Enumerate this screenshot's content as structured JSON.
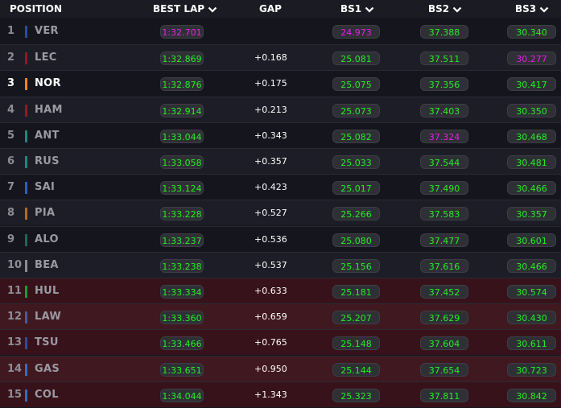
{
  "header": {
    "position": "POSITION",
    "best_lap": "BEST LAP",
    "gap": "GAP",
    "bs1": "BS1",
    "bs2": "BS2",
    "bs3": "BS3",
    "sort_icon": "chevron-down-icon"
  },
  "colors": {
    "personal_best": "#25ee25",
    "overall_best": "#e81ee8",
    "row_default": "#15151e",
    "row_alt": "#1d1d27",
    "row_eliminated": "#38121a",
    "row_eliminated_alt": "#401820"
  },
  "rows": [
    {
      "pos": "1",
      "code": "VER",
      "team_color": "#2b4c9c",
      "lap": "1:32.701",
      "lap_best": true,
      "gap": "",
      "bs1": "24.973",
      "bs1_best": true,
      "bs2": "37.388",
      "bs2_best": false,
      "bs3": "30.340",
      "bs3_best": false,
      "eliminated": false,
      "highlight": false
    },
    {
      "pos": "2",
      "code": "LEC",
      "team_color": "#8f1a22",
      "lap": "1:32.869",
      "lap_best": false,
      "gap": "+0.168",
      "bs1": "25.081",
      "bs1_best": false,
      "bs2": "37.511",
      "bs2_best": false,
      "bs3": "30.277",
      "bs3_best": true,
      "eliminated": false,
      "highlight": false
    },
    {
      "pos": "3",
      "code": "NOR",
      "team_color": "#f58020",
      "lap": "1:32.876",
      "lap_best": false,
      "gap": "+0.175",
      "bs1": "25.075",
      "bs1_best": false,
      "bs2": "37.356",
      "bs2_best": false,
      "bs3": "30.417",
      "bs3_best": false,
      "eliminated": false,
      "highlight": true
    },
    {
      "pos": "4",
      "code": "HAM",
      "team_color": "#8f1a22",
      "lap": "1:32.914",
      "lap_best": false,
      "gap": "+0.213",
      "bs1": "25.073",
      "bs1_best": false,
      "bs2": "37.403",
      "bs2_best": false,
      "bs3": "30.350",
      "bs3_best": false,
      "eliminated": false,
      "highlight": false
    },
    {
      "pos": "5",
      "code": "ANT",
      "team_color": "#1a8a7a",
      "lap": "1:33.044",
      "lap_best": false,
      "gap": "+0.343",
      "bs1": "25.082",
      "bs1_best": false,
      "bs2": "37.324",
      "bs2_best": true,
      "bs3": "30.468",
      "bs3_best": false,
      "eliminated": false,
      "highlight": false
    },
    {
      "pos": "6",
      "code": "RUS",
      "team_color": "#1a8a7a",
      "lap": "1:33.058",
      "lap_best": false,
      "gap": "+0.357",
      "bs1": "25.033",
      "bs1_best": false,
      "bs2": "37.544",
      "bs2_best": false,
      "bs3": "30.481",
      "bs3_best": false,
      "eliminated": false,
      "highlight": false
    },
    {
      "pos": "7",
      "code": "SAI",
      "team_color": "#2f5fb8",
      "lap": "1:33.124",
      "lap_best": false,
      "gap": "+0.423",
      "bs1": "25.017",
      "bs1_best": false,
      "bs2": "37.490",
      "bs2_best": false,
      "bs3": "30.466",
      "bs3_best": false,
      "eliminated": false,
      "highlight": false
    },
    {
      "pos": "8",
      "code": "PIA",
      "team_color": "#b86a20",
      "lap": "1:33.228",
      "lap_best": false,
      "gap": "+0.527",
      "bs1": "25.266",
      "bs1_best": false,
      "bs2": "37.583",
      "bs2_best": false,
      "bs3": "30.357",
      "bs3_best": false,
      "eliminated": false,
      "highlight": false
    },
    {
      "pos": "9",
      "code": "ALO",
      "team_color": "#1d6b4c",
      "lap": "1:33.237",
      "lap_best": false,
      "gap": "+0.536",
      "bs1": "25.080",
      "bs1_best": false,
      "bs2": "37.477",
      "bs2_best": false,
      "bs3": "30.601",
      "bs3_best": false,
      "eliminated": false,
      "highlight": false
    },
    {
      "pos": "10",
      "code": "BEA",
      "team_color": "#8a8a92",
      "lap": "1:33.238",
      "lap_best": false,
      "gap": "+0.537",
      "bs1": "25.156",
      "bs1_best": false,
      "bs2": "37.616",
      "bs2_best": false,
      "bs3": "30.466",
      "bs3_best": false,
      "eliminated": false,
      "highlight": false
    },
    {
      "pos": "11",
      "code": "HUL",
      "team_color": "#1a9a3a",
      "lap": "1:33.334",
      "lap_best": false,
      "gap": "+0.633",
      "bs1": "25.181",
      "bs1_best": false,
      "bs2": "37.452",
      "bs2_best": false,
      "bs3": "30.574",
      "bs3_best": false,
      "eliminated": true,
      "highlight": false
    },
    {
      "pos": "12",
      "code": "LAW",
      "team_color": "#4a5a9a",
      "lap": "1:33.360",
      "lap_best": false,
      "gap": "+0.659",
      "bs1": "25.207",
      "bs1_best": false,
      "bs2": "37.629",
      "bs2_best": false,
      "bs3": "30.430",
      "bs3_best": false,
      "eliminated": true,
      "highlight": false
    },
    {
      "pos": "13",
      "code": "TSU",
      "team_color": "#2b4c9c",
      "lap": "1:33.466",
      "lap_best": false,
      "gap": "+0.765",
      "bs1": "25.148",
      "bs1_best": false,
      "bs2": "37.604",
      "bs2_best": false,
      "bs3": "30.611",
      "bs3_best": false,
      "eliminated": true,
      "highlight": false
    },
    {
      "pos": "14",
      "code": "GAS",
      "team_color": "#3b6ab8",
      "lap": "1:33.651",
      "lap_best": false,
      "gap": "+0.950",
      "bs1": "25.144",
      "bs1_best": false,
      "bs2": "37.654",
      "bs2_best": false,
      "bs3": "30.723",
      "bs3_best": false,
      "eliminated": true,
      "highlight": false
    },
    {
      "pos": "15",
      "code": "COL",
      "team_color": "#3b6ab8",
      "lap": "1:34.044",
      "lap_best": false,
      "gap": "+1.343",
      "bs1": "25.323",
      "bs1_best": false,
      "bs2": "37.811",
      "bs2_best": false,
      "bs3": "30.842",
      "bs3_best": false,
      "eliminated": true,
      "highlight": false
    }
  ]
}
